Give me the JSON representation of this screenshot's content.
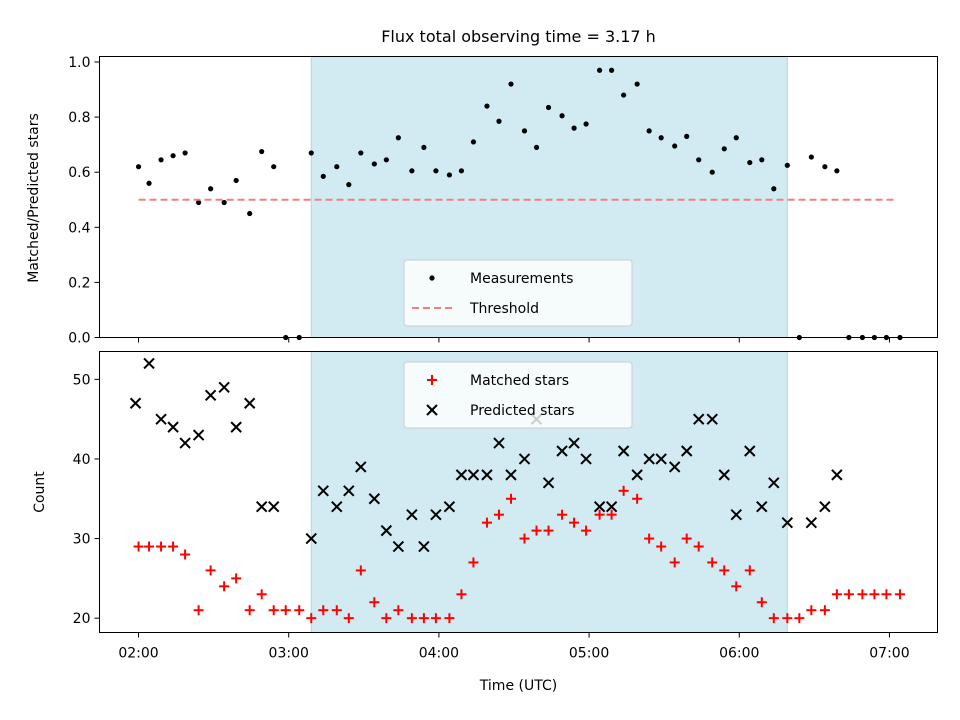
{
  "chart_data": [
    {
      "type": "scatter",
      "title": "Flux total observing time = 3.17 h",
      "xlabel": "",
      "ylabel": "Matched/Predicted stars",
      "ylim": [
        0,
        1.02
      ],
      "yticks": [
        0.0,
        0.2,
        0.4,
        0.6,
        0.8,
        1.0
      ],
      "ytick_labels": [
        "0.0",
        "0.2",
        "0.4",
        "0.6",
        "0.8",
        "1.0"
      ],
      "xlim_hours": [
        1.74,
        7.32
      ],
      "xticks_hours": [
        2,
        3,
        4,
        5,
        6,
        7
      ],
      "shaded_interval_hours": [
        3.15,
        6.32
      ],
      "shaded_color": "#add8e6",
      "legend_position": "lower center",
      "series": [
        {
          "name": "Measurements",
          "marker": "dot",
          "color": "#000000",
          "x_hours": [
            2.0,
            2.07,
            2.15,
            2.23,
            2.31,
            2.4,
            2.48,
            2.57,
            2.65,
            2.74,
            2.82,
            2.9,
            2.98,
            3.07,
            3.15,
            3.23,
            3.32,
            3.4,
            3.48,
            3.57,
            3.65,
            3.73,
            3.82,
            3.9,
            3.98,
            4.07,
            4.15,
            4.23,
            4.32,
            4.4,
            4.48,
            4.57,
            4.65,
            4.73,
            4.82,
            4.9,
            4.98,
            5.07,
            5.15,
            5.23,
            5.32,
            5.4,
            5.48,
            5.57,
            5.65,
            5.73,
            5.82,
            5.9,
            5.98,
            6.07,
            6.15,
            6.23,
            6.32,
            6.4,
            6.48,
            6.57,
            6.65,
            6.73,
            6.82,
            6.9,
            6.98,
            7.07
          ],
          "y": [
            0.62,
            0.56,
            0.645,
            0.66,
            0.67,
            0.49,
            0.54,
            0.49,
            0.57,
            0.45,
            0.675,
            0.62,
            0.0,
            0.0,
            0.67,
            0.585,
            0.62,
            0.555,
            0.67,
            0.63,
            0.645,
            0.725,
            0.605,
            0.69,
            0.605,
            0.59,
            0.605,
            0.71,
            0.84,
            0.785,
            0.92,
            0.75,
            0.69,
            0.835,
            0.805,
            0.76,
            0.775,
            0.97,
            0.97,
            0.88,
            0.92,
            0.75,
            0.725,
            0.695,
            0.73,
            0.645,
            0.6,
            0.685,
            0.725,
            0.635,
            0.645,
            0.54,
            0.625,
            0.0,
            0.655,
            0.62,
            0.605,
            0.0,
            0.0,
            0.0,
            0.0,
            0.0
          ]
        },
        {
          "name": "Threshold",
          "style": "dashed",
          "color": "#f08080",
          "x_hours": [
            2.0,
            7.03
          ],
          "y": [
            0.5,
            0.5
          ]
        }
      ]
    },
    {
      "type": "scatter",
      "title": "",
      "xlabel": "Time (UTC)",
      "ylabel": "Count",
      "ylim": [
        18.2,
        53.5
      ],
      "yticks": [
        20,
        30,
        40,
        50
      ],
      "ytick_labels": [
        "20",
        "30",
        "40",
        "50"
      ],
      "xlim_hours": [
        1.74,
        7.32
      ],
      "xticks_hours": [
        2,
        3,
        4,
        5,
        6,
        7
      ],
      "xtick_labels": [
        "02:00",
        "03:00",
        "04:00",
        "05:00",
        "06:00",
        "07:00"
      ],
      "shaded_interval_hours": [
        3.15,
        6.32
      ],
      "shaded_color": "#add8e6",
      "legend_position": "upper center",
      "series": [
        {
          "name": "Matched stars",
          "marker": "plus",
          "color": "#ff0000",
          "x_hours": [
            2.0,
            2.07,
            2.15,
            2.23,
            2.31,
            2.4,
            2.48,
            2.57,
            2.65,
            2.74,
            2.82,
            2.9,
            2.98,
            3.07,
            3.15,
            3.23,
            3.32,
            3.4,
            3.48,
            3.57,
            3.65,
            3.73,
            3.82,
            3.9,
            3.98,
            4.07,
            4.15,
            4.23,
            4.32,
            4.4,
            4.48,
            4.57,
            4.65,
            4.73,
            4.82,
            4.9,
            4.98,
            5.07,
            5.15,
            5.23,
            5.32,
            5.4,
            5.48,
            5.57,
            5.65,
            5.73,
            5.82,
            5.9,
            5.98,
            6.07,
            6.15,
            6.23,
            6.32,
            6.4,
            6.48,
            6.57,
            6.65,
            6.73,
            6.82,
            6.9,
            6.98,
            7.07
          ],
          "y": [
            29,
            29,
            29,
            29,
            28,
            21,
            26,
            24,
            25,
            21,
            23,
            21,
            21,
            21,
            20,
            21,
            21,
            20,
            26,
            22,
            20,
            21,
            20,
            20,
            20,
            20,
            23,
            27,
            32,
            33,
            35,
            30,
            31,
            31,
            33,
            32,
            31,
            33,
            33,
            36,
            35,
            30,
            29,
            27,
            30,
            29,
            27,
            26,
            24,
            26,
            22,
            20,
            20,
            20,
            21,
            21,
            23,
            23,
            23,
            23,
            23,
            23
          ]
        },
        {
          "name": "Predicted stars",
          "marker": "x",
          "color": "#000000",
          "x_hours": [
            1.98,
            2.07,
            2.15,
            2.23,
            2.31,
            2.4,
            2.48,
            2.57,
            2.65,
            2.74,
            2.82,
            2.9,
            3.15,
            3.23,
            3.32,
            3.4,
            3.48,
            3.57,
            3.65,
            3.73,
            3.82,
            3.9,
            3.98,
            4.07,
            4.15,
            4.23,
            4.32,
            4.4,
            4.48,
            4.57,
            4.65,
            4.73,
            4.82,
            4.9,
            4.98,
            5.07,
            5.15,
            5.23,
            5.32,
            5.4,
            5.48,
            5.57,
            5.65,
            5.73,
            5.82,
            5.9,
            5.98,
            6.07,
            6.15,
            6.23,
            6.32,
            6.48,
            6.57,
            6.65
          ],
          "y": [
            47,
            52,
            45,
            44,
            42,
            43,
            48,
            49,
            44,
            47,
            34,
            34,
            30,
            36,
            34,
            36,
            39,
            35,
            31,
            29,
            33,
            29,
            33,
            34,
            38,
            38,
            38,
            42,
            38,
            40,
            45,
            37,
            41,
            42,
            40,
            34,
            34,
            41,
            38,
            40,
            40,
            39,
            41,
            45,
            45,
            38,
            33,
            41,
            34,
            37,
            32,
            32,
            34,
            38
          ]
        }
      ]
    }
  ]
}
